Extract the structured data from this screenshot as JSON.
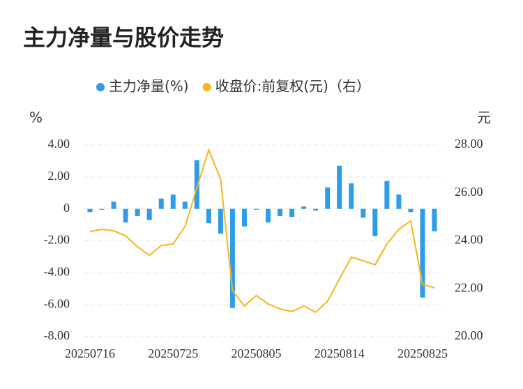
{
  "chart_data": {
    "type": "bar_line",
    "title": "主力净量与股价走势",
    "y_label": "%",
    "y2_label": "元",
    "categories": [
      "20250716",
      null,
      null,
      null,
      null,
      null,
      null,
      "20250725",
      null,
      null,
      null,
      null,
      null,
      null,
      "20250805",
      null,
      null,
      null,
      null,
      null,
      null,
      "20250814",
      null,
      null,
      null,
      null,
      null,
      null,
      "20250825",
      null
    ],
    "series": [
      {
        "name": "主力净量(%)",
        "color": "#2f9ce9",
        "type": "bar",
        "values": [
          -0.2,
          -0.05,
          0.45,
          -0.85,
          -0.45,
          -0.7,
          0.65,
          0.9,
          0.45,
          3.05,
          -0.9,
          -1.55,
          -6.2,
          -1.1,
          -0.05,
          -0.85,
          -0.45,
          -0.5,
          0.15,
          -0.1,
          1.35,
          2.7,
          1.6,
          -0.55,
          -1.7,
          1.75,
          0.9,
          -0.2,
          -5.55,
          -1.4
        ]
      },
      {
        "name": "收盘价:前复权(元)（右）",
        "color": "#f4b71b",
        "type": "line",
        "axis": "y2",
        "values": [
          24.39,
          24.48,
          24.42,
          24.21,
          23.75,
          23.4,
          23.81,
          23.87,
          24.6,
          26.2,
          27.8,
          26.57,
          21.92,
          21.28,
          21.72,
          21.37,
          21.16,
          21.05,
          21.28,
          21.02,
          21.48,
          22.41,
          23.32,
          23.17,
          23.0,
          23.87,
          24.48,
          24.83,
          22.18,
          22.04
        ]
      }
    ],
    "ylim": [
      -8,
      4
    ],
    "yticks": [
      {
        "value": -8,
        "label": "-8.00"
      },
      {
        "value": -6,
        "label": "-6.00"
      },
      {
        "value": -4,
        "label": "-4.00"
      },
      {
        "value": -2,
        "label": "-2.00"
      },
      0,
      {
        "value": 2,
        "label": "2.00"
      },
      {
        "value": 4,
        "label": "4.00"
      }
    ],
    "y2lim": [
      20,
      28
    ],
    "y2ticks": [
      {
        "value": 20,
        "label": "20.00"
      },
      {
        "value": 22,
        "label": "22.00"
      },
      {
        "value": 24,
        "label": "24.00"
      },
      {
        "value": 26,
        "label": "26.00"
      },
      {
        "value": 28,
        "label": "28.00"
      }
    ],
    "grid": true
  }
}
